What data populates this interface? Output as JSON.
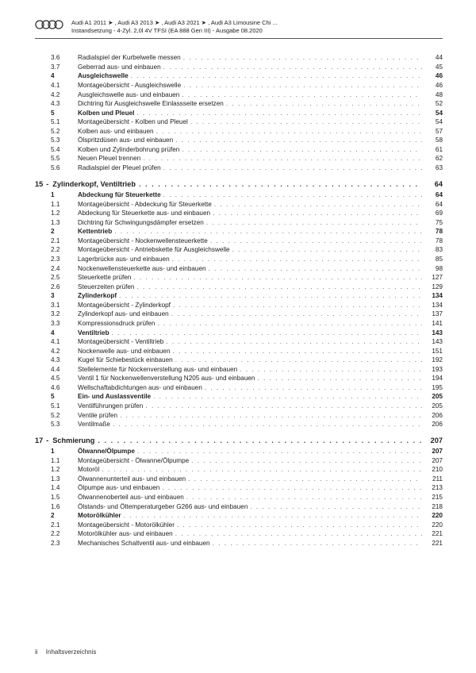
{
  "header": {
    "line1": "Audi A1 2011 ➤ , Audi A3 2013 ➤ , Audi A3 2021 ➤ , Audi A3 Limousine Chi ...",
    "line2": "Instandsetzung - 4-Zyl. 2,0l 4V TFSI (EA 888 Gen III) - Ausgabe 08.2020"
  },
  "chapters": [
    {
      "num": "",
      "title": "",
      "page": "",
      "items": [
        {
          "num": "3.6",
          "title": "Radialspiel der Kurbelwelle messen",
          "page": "44",
          "bold": false
        },
        {
          "num": "3.7",
          "title": "Geberrad aus- und einbauen",
          "page": "45",
          "bold": false
        },
        {
          "num": "4",
          "title": "Ausgleichswelle",
          "page": "46",
          "bold": true
        },
        {
          "num": "4.1",
          "title": "Montageübersicht - Ausgleichswelle",
          "page": "46",
          "bold": false
        },
        {
          "num": "4.2",
          "title": "Ausgleichswelle aus- und einbauen",
          "page": "48",
          "bold": false
        },
        {
          "num": "4.3",
          "title": "Dichtring für Ausgleichswelle Einlassseite ersetzen",
          "page": "52",
          "bold": false
        },
        {
          "num": "5",
          "title": "Kolben und Pleuel",
          "page": "54",
          "bold": true
        },
        {
          "num": "5.1",
          "title": "Montageübersicht - Kolben und Pleuel",
          "page": "54",
          "bold": false
        },
        {
          "num": "5.2",
          "title": "Kolben aus- und einbauen",
          "page": "57",
          "bold": false
        },
        {
          "num": "5.3",
          "title": "Ölspritzdüsen aus- und einbauen",
          "page": "58",
          "bold": false
        },
        {
          "num": "5.4",
          "title": "Kolben und Zylinderbohrung prüfen",
          "page": "61",
          "bold": false
        },
        {
          "num": "5.5",
          "title": "Neuen Pleuel trennen",
          "page": "62",
          "bold": false
        },
        {
          "num": "5.6",
          "title": "Radialspiel der Pleuel prüfen",
          "page": "63",
          "bold": false
        }
      ]
    },
    {
      "num": "15",
      "title": "Zylinderkopf, Ventiltrieb",
      "page": "64",
      "items": [
        {
          "num": "1",
          "title": "Abdeckung für Steuerkette",
          "page": "64",
          "bold": true
        },
        {
          "num": "1.1",
          "title": "Montageübersicht - Abdeckung für Steuerkette",
          "page": "64",
          "bold": false
        },
        {
          "num": "1.2",
          "title": "Abdeckung für Steuerkette aus- und einbauen",
          "page": "69",
          "bold": false
        },
        {
          "num": "1.3",
          "title": "Dichtring für Schwingungsdämpfer ersetzen",
          "page": "75",
          "bold": false
        },
        {
          "num": "2",
          "title": "Kettentrieb",
          "page": "78",
          "bold": true
        },
        {
          "num": "2.1",
          "title": "Montageübersicht - Nockenwellensteuerkette",
          "page": "78",
          "bold": false
        },
        {
          "num": "2.2",
          "title": "Montageübersicht - Antriebskette für Ausgleichswelle",
          "page": "83",
          "bold": false
        },
        {
          "num": "2.3",
          "title": "Lagerbrücke aus- und einbauen",
          "page": "85",
          "bold": false
        },
        {
          "num": "2.4",
          "title": "Nockenwellensteuerkette aus- und einbauen",
          "page": "98",
          "bold": false
        },
        {
          "num": "2.5",
          "title": "Steuerkette prüfen",
          "page": "127",
          "bold": false
        },
        {
          "num": "2.6",
          "title": "Steuerzeiten prüfen",
          "page": "129",
          "bold": false
        },
        {
          "num": "3",
          "title": "Zylinderkopf",
          "page": "134",
          "bold": true
        },
        {
          "num": "3.1",
          "title": "Montageübersicht - Zylinderkopf",
          "page": "134",
          "bold": false
        },
        {
          "num": "3.2",
          "title": "Zylinderkopf aus- und einbauen",
          "page": "137",
          "bold": false
        },
        {
          "num": "3.3",
          "title": "Kompressionsdruck prüfen",
          "page": "141",
          "bold": false
        },
        {
          "num": "4",
          "title": "Ventiltrieb",
          "page": "143",
          "bold": true
        },
        {
          "num": "4.1",
          "title": "Montageübersicht - Ventiltrieb",
          "page": "143",
          "bold": false
        },
        {
          "num": "4.2",
          "title": "Nockenwelle aus- und einbauen",
          "page": "151",
          "bold": false
        },
        {
          "num": "4.3",
          "title": "Kugel für Schiebestück einbauen",
          "page": "192",
          "bold": false
        },
        {
          "num": "4.4",
          "title": "Stellelemente für Nockenverstellung aus- und einbauen",
          "page": "193",
          "bold": false
        },
        {
          "num": "4.5",
          "title": "Ventil 1 für Nockenwellenverstellung N205 aus- und einbauen",
          "page": "194",
          "bold": false
        },
        {
          "num": "4.6",
          "title": "Wellschaftabdichtungen aus- und einbauen",
          "page": "195",
          "bold": false
        },
        {
          "num": "5",
          "title": "Ein- und Auslassventile",
          "page": "205",
          "bold": true
        },
        {
          "num": "5.1",
          "title": "Ventilführungen prüfen",
          "page": "205",
          "bold": false
        },
        {
          "num": "5.2",
          "title": "Ventile prüfen",
          "page": "206",
          "bold": false
        },
        {
          "num": "5.3",
          "title": "Ventilmaße",
          "page": "206",
          "bold": false
        }
      ]
    },
    {
      "num": "17",
      "title": "Schmierung",
      "page": "207",
      "items": [
        {
          "num": "1",
          "title": "Ölwanne/Ölpumpe",
          "page": "207",
          "bold": true
        },
        {
          "num": "1.1",
          "title": "Montageübersicht - Ölwanne/Ölpumpe",
          "page": "207",
          "bold": false
        },
        {
          "num": "1.2",
          "title": "Motoröl",
          "page": "210",
          "bold": false
        },
        {
          "num": "1.3",
          "title": "Ölwannenunterteil aus- und einbauen",
          "page": "211",
          "bold": false
        },
        {
          "num": "1.4",
          "title": "Ölpumpe aus- und einbauen",
          "page": "213",
          "bold": false
        },
        {
          "num": "1.5",
          "title": "Ölwannenoberteil aus- und einbauen",
          "page": "215",
          "bold": false
        },
        {
          "num": "1.6",
          "title": "Ölstands- und Öltemperaturgeber G266 aus- und einbauen",
          "page": "218",
          "bold": false
        },
        {
          "num": "2",
          "title": "Motorölkühler",
          "page": "220",
          "bold": true
        },
        {
          "num": "2.1",
          "title": "Montageübersicht - Motorölkühler",
          "page": "220",
          "bold": false
        },
        {
          "num": "2.2",
          "title": "Motorölkühler aus- und einbauen",
          "page": "221",
          "bold": false
        },
        {
          "num": "2.3",
          "title": "Mechanisches Schaltventil aus- und einbauen",
          "page": "221",
          "bold": false
        }
      ]
    }
  ],
  "footer": {
    "pagenum": "ii",
    "label": "Inhaltsverzeichnis"
  },
  "dots": ". . . . . . . . . . . . . . . . . . . . . . . . . . . . . . . . . . . . . . . . . . . . . . . . . . . . . . . . . . . . . . . . . . . . . . . . . . . . . . . . . . . . . . . . . . . . . . . . . . . . . . . . . . . . . . . . . . . . . . . . . . . . . . . . . . . . . . . . . . . . ."
}
